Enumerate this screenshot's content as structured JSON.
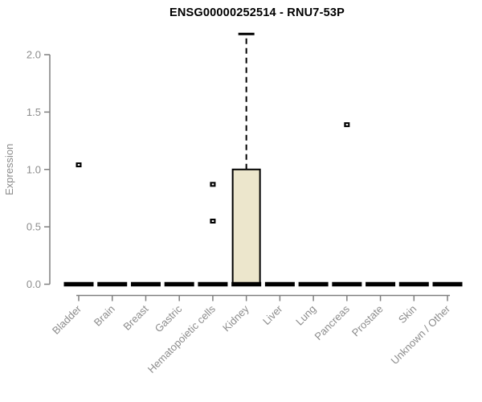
{
  "chart_data": {
    "type": "boxplot",
    "title": "ENSG00000252514 - RNU7-53P",
    "xlabel": "",
    "ylabel": "Expression",
    "ylim": [
      0,
      2.2
    ],
    "yticks": [
      0.0,
      0.5,
      1.0,
      1.5,
      2.0
    ],
    "grid": false,
    "legend": false,
    "categories": [
      "Bladder",
      "Brain",
      "Breast",
      "Gastric",
      "Hematopoietic cells",
      "Kidney",
      "Liver",
      "Lung",
      "Pancreas",
      "Prostate",
      "Skin",
      "Unknown / Other"
    ],
    "boxes": [
      {
        "category": "Bladder",
        "low": 0,
        "q1": 0,
        "median": 0,
        "q3": 0,
        "high": 0,
        "outliers": [
          1.04
        ]
      },
      {
        "category": "Brain",
        "low": 0,
        "q1": 0,
        "median": 0,
        "q3": 0,
        "high": 0,
        "outliers": []
      },
      {
        "category": "Breast",
        "low": 0,
        "q1": 0,
        "median": 0,
        "q3": 0,
        "high": 0,
        "outliers": []
      },
      {
        "category": "Gastric",
        "low": 0,
        "q1": 0,
        "median": 0,
        "q3": 0,
        "high": 0,
        "outliers": []
      },
      {
        "category": "Hematopoietic cells",
        "low": 0,
        "q1": 0,
        "median": 0,
        "q3": 0,
        "high": 0,
        "outliers": [
          0.87,
          0.55
        ]
      },
      {
        "category": "Kidney",
        "low": 0,
        "q1": 0,
        "median": 0,
        "q3": 1.0,
        "high": 2.18,
        "outliers": []
      },
      {
        "category": "Liver",
        "low": 0,
        "q1": 0,
        "median": 0,
        "q3": 0,
        "high": 0,
        "outliers": []
      },
      {
        "category": "Lung",
        "low": 0,
        "q1": 0,
        "median": 0,
        "q3": 0,
        "high": 0,
        "outliers": []
      },
      {
        "category": "Pancreas",
        "low": 0,
        "q1": 0,
        "median": 0,
        "q3": 0,
        "high": 0,
        "outliers": [
          1.39
        ]
      },
      {
        "category": "Prostate",
        "low": 0,
        "q1": 0,
        "median": 0,
        "q3": 0,
        "high": 0,
        "outliers": []
      },
      {
        "category": "Skin",
        "low": 0,
        "q1": 0,
        "median": 0,
        "q3": 0,
        "high": 0,
        "outliers": []
      },
      {
        "category": "Unknown / Other",
        "low": 0,
        "q1": 0,
        "median": 0,
        "q3": 0,
        "high": 0,
        "outliers": []
      }
    ],
    "colors": {
      "box_fill": "#ECE6CC",
      "box_border": "#000000",
      "median": "#000000",
      "whisker": "#000000",
      "outlier": "#000000",
      "axis_line": "#7F7F7F",
      "tick_label": "#8C8C8C",
      "axis_title": "#8C8C8C",
      "title": "#000000",
      "background": "#FFFFFF"
    }
  }
}
